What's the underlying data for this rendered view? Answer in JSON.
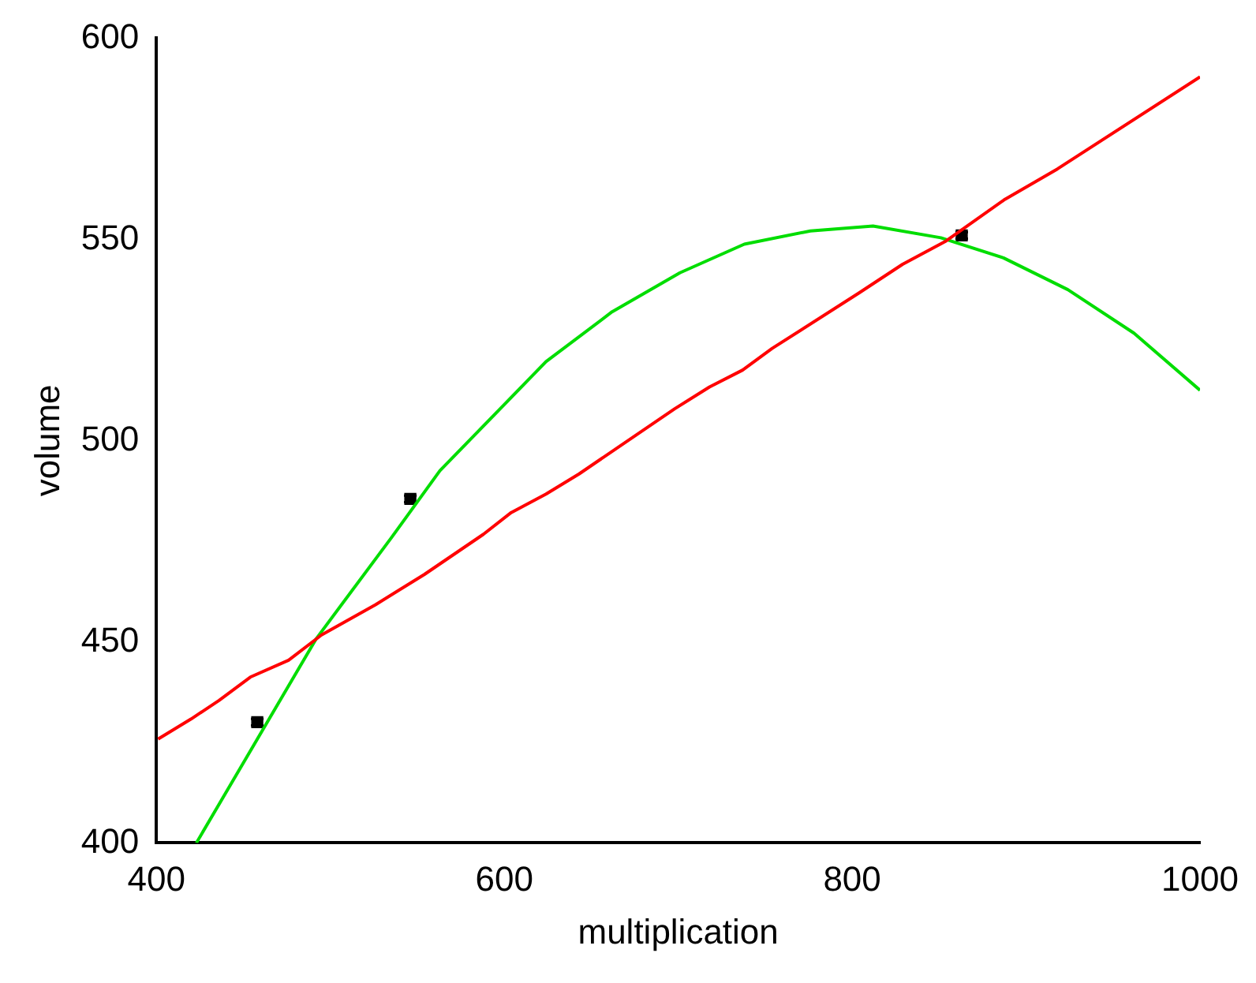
{
  "chart_data": {
    "type": "line",
    "xlabel": "multiplication",
    "ylabel": "volume",
    "xlim": [
      400,
      1000
    ],
    "xticks": [
      400,
      600,
      800,
      1000
    ],
    "ylim": [
      400,
      600
    ],
    "yticks": [
      400,
      450,
      500,
      550,
      600
    ],
    "grid": false,
    "legend": false,
    "series": [
      {
        "color": "#ff0000",
        "marker": "none",
        "x": [
          401,
          420,
          436,
          454,
          476,
          495,
          526,
          554,
          588,
          604,
          624,
          643,
          698,
          718,
          737,
          754,
          804,
          829,
          854,
          888,
          918,
          1000
        ],
        "values": [
          425.8,
          430.8,
          435.4,
          441.2,
          445.4,
          451.7,
          459.2,
          466.7,
          476.7,
          482.1,
          486.7,
          491.7,
          507.9,
          513.3,
          517.5,
          522.9,
          536.7,
          543.8,
          549.6,
          560,
          567.5,
          590.4
        ]
      },
      {
        "color": "#00dd00",
        "marker": "none",
        "x": [
          423,
          492,
          535,
          563,
          624,
          662,
          701,
          738,
          776,
          812,
          851,
          887,
          924,
          962,
          1000
        ],
        "values": [
          400,
          450.8,
          475.8,
          492.5,
          519.6,
          532,
          541.7,
          548.8,
          552.1,
          553.3,
          550.4,
          545.4,
          537.5,
          526.7,
          512.5
        ]
      },
      {
        "type": "scatter",
        "color": "#000000",
        "marker": "square",
        "x": [
          458,
          546,
          863
        ],
        "values": [
          430,
          485.5,
          551
        ],
        "errors": [
          0.8,
          0.8,
          0.8
        ]
      }
    ]
  }
}
